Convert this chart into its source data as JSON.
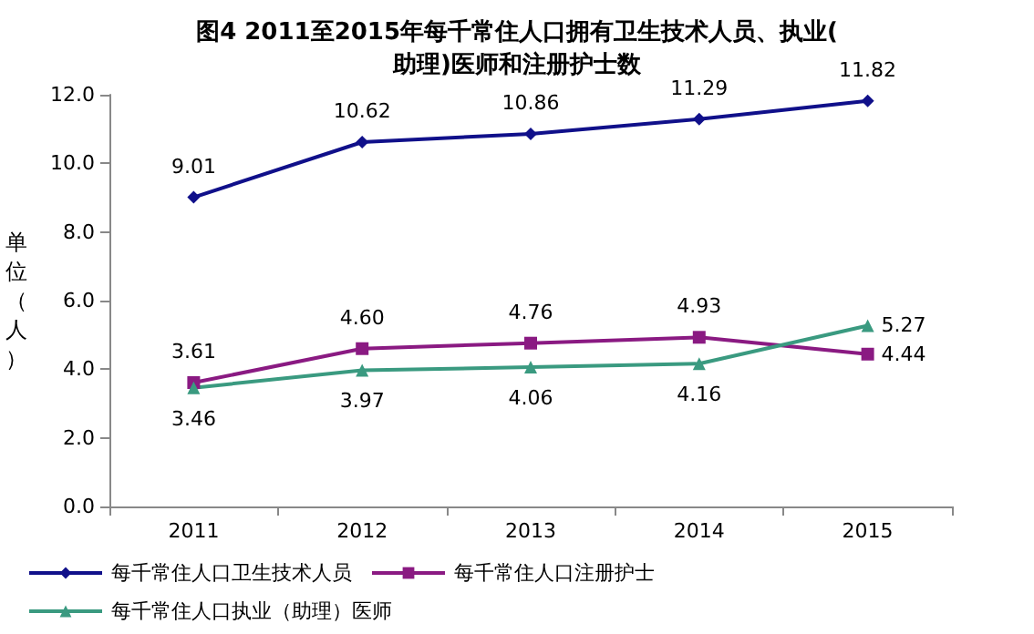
{
  "chart_data": {
    "type": "line",
    "title": "图4 2011至2015年每千常住人口拥有卫生技术人员、执业(助理)医师和注册护士数",
    "ylabel": "单位（人）",
    "categories": [
      "2011",
      "2012",
      "2013",
      "2014",
      "2015"
    ],
    "series": [
      {
        "name": "每千常住人口卫生技术人员",
        "color": "#10108a",
        "marker": "diamond",
        "values": [
          9.01,
          10.62,
          10.86,
          11.29,
          11.82
        ],
        "value_labels": [
          "9.01",
          "10.62",
          "10.86",
          "11.29",
          "11.82"
        ]
      },
      {
        "name": "每千常住人口注册护士",
        "color": "#8a1a82",
        "marker": "square",
        "values": [
          3.61,
          4.6,
          4.76,
          4.93,
          4.44
        ],
        "value_labels": [
          "3.61",
          "4.60",
          "4.76",
          "4.93",
          "4.44"
        ]
      },
      {
        "name": "每千常住人口执业（助理）医师",
        "color": "#3a9a80",
        "marker": "triangle",
        "values": [
          3.46,
          3.97,
          4.06,
          4.16,
          5.27
        ],
        "value_labels": [
          "3.46",
          "3.97",
          "4.06",
          "4.16",
          "5.27"
        ]
      }
    ],
    "ylim": [
      0,
      12
    ],
    "yticks": [
      {
        "value": 0,
        "label": "0.0"
      },
      {
        "value": 2,
        "label": "2.0"
      },
      {
        "value": 4,
        "label": "4.0"
      },
      {
        "value": 6,
        "label": "6.0"
      },
      {
        "value": 8,
        "label": "8.0"
      },
      {
        "value": 10,
        "label": "10.0"
      },
      {
        "value": 12,
        "label": "12.0"
      }
    ],
    "grid": false,
    "legend": "bottom",
    "line_style": "solid"
  }
}
